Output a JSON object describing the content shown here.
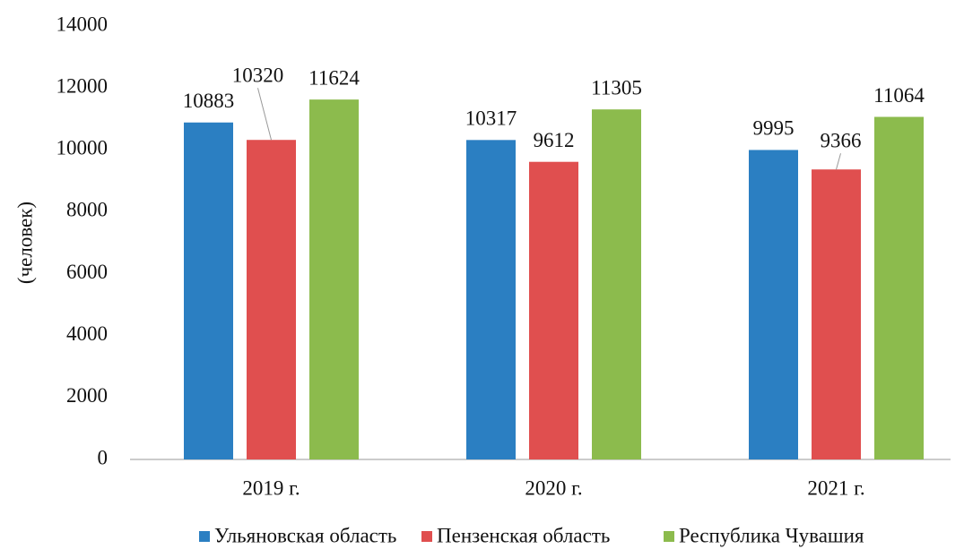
{
  "chart_data": {
    "type": "bar",
    "y_label": "(человек)",
    "categories": [
      "2019 г.",
      "2020 г.",
      "2021 г."
    ],
    "series": [
      {
        "name": "Ульяновская область",
        "color": "#2b7fc2",
        "values": [
          10883,
          10317,
          9995
        ]
      },
      {
        "name": "Пензенская область",
        "color": "#e04f4f",
        "values": [
          10320,
          9612,
          9366
        ]
      },
      {
        "name": "Республика Чувашия",
        "color": "#8cbb4d",
        "values": [
          11624,
          11305,
          11064
        ]
      }
    ],
    "ylim": [
      0,
      14000
    ],
    "yticks": [
      0,
      2000,
      4000,
      6000,
      8000,
      10000,
      12000,
      14000
    ],
    "grid": false,
    "legend": "bottom"
  }
}
